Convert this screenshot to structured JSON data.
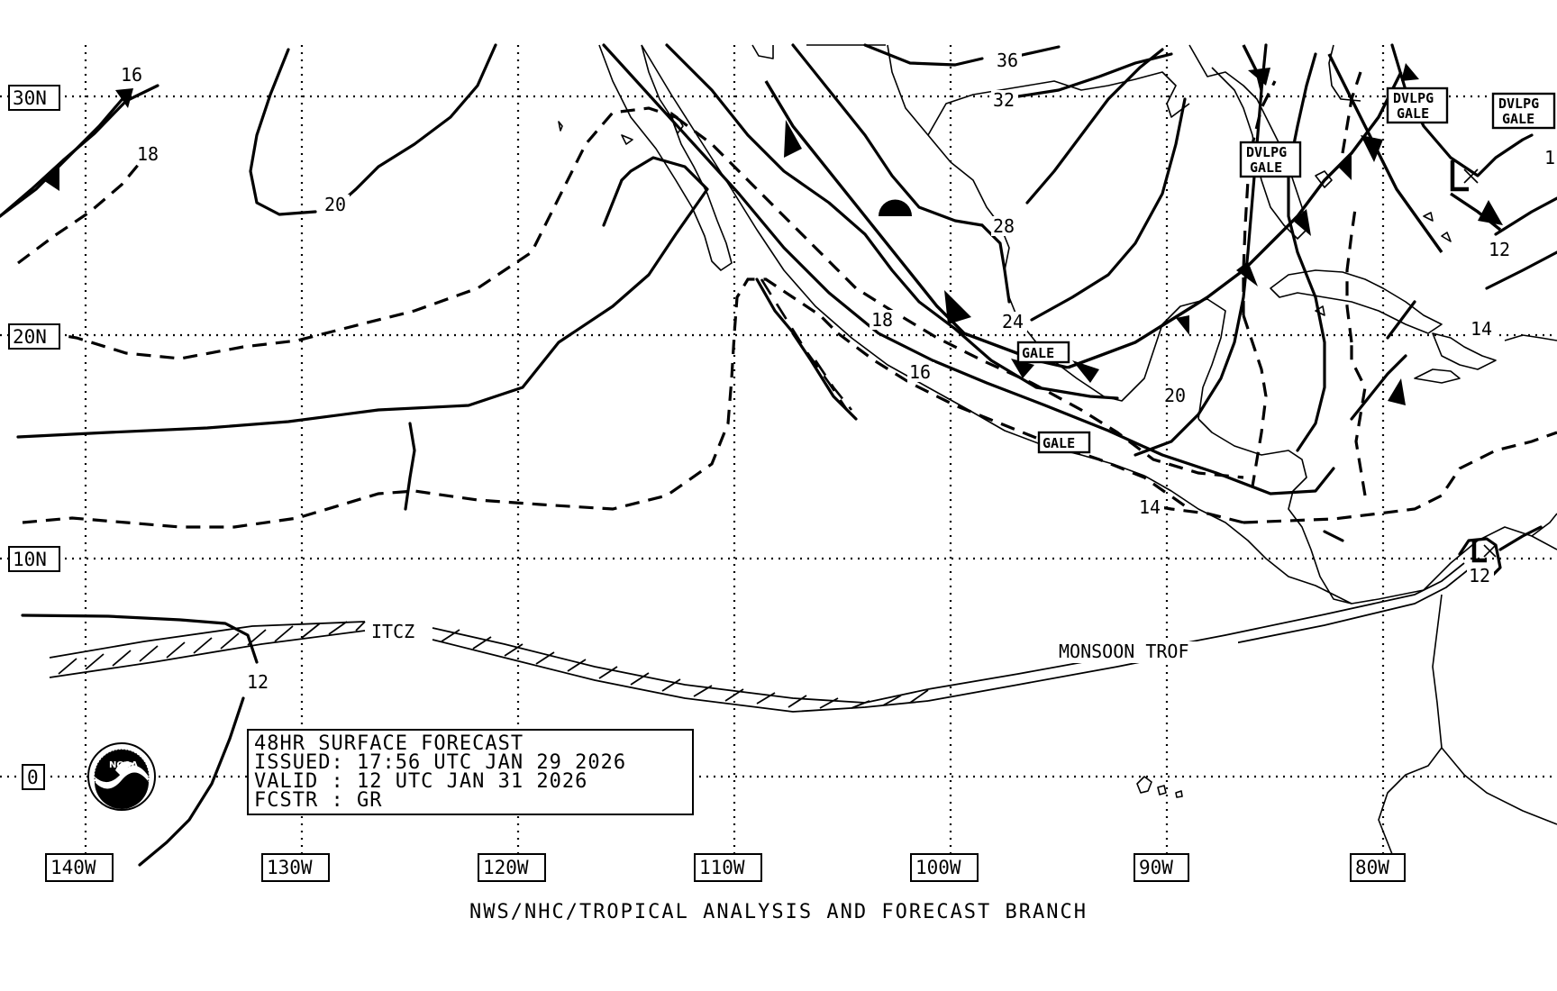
{
  "map": {
    "lat_labels": [
      "30N",
      "20N",
      "10N",
      "0"
    ],
    "lon_labels": [
      "140W",
      "130W",
      "120W",
      "110W",
      "100W",
      "90W",
      "80W"
    ],
    "isobar_labels": [
      "16",
      "18",
      "20",
      "36",
      "32",
      "28",
      "24",
      "18",
      "16",
      "20",
      "14",
      "12",
      "12",
      "14",
      "12",
      "1"
    ],
    "feature_labels": {
      "itcz": "ITCZ",
      "monsoon": "MONSOON TROF"
    },
    "warnings": {
      "gale": "GALE",
      "dvlpg_top": "DVLPG",
      "dvlpg_bottom": "GALE"
    },
    "pressure_systems": [
      "L",
      "L"
    ]
  },
  "info_box": {
    "line1": "48HR SURFACE FORECAST",
    "line2": "ISSUED: 17:56 UTC JAN 29 2026",
    "line3": "VALID : 12 UTC JAN 31 2026",
    "line4": "FCSTR : GR"
  },
  "logo": {
    "text": "NOAA",
    "icon": "noaa-logo-icon"
  },
  "footer": "NWS/NHC/TROPICAL ANALYSIS AND FORECAST BRANCH",
  "colors": {
    "ink": "#000000",
    "paper": "#ffffff"
  }
}
